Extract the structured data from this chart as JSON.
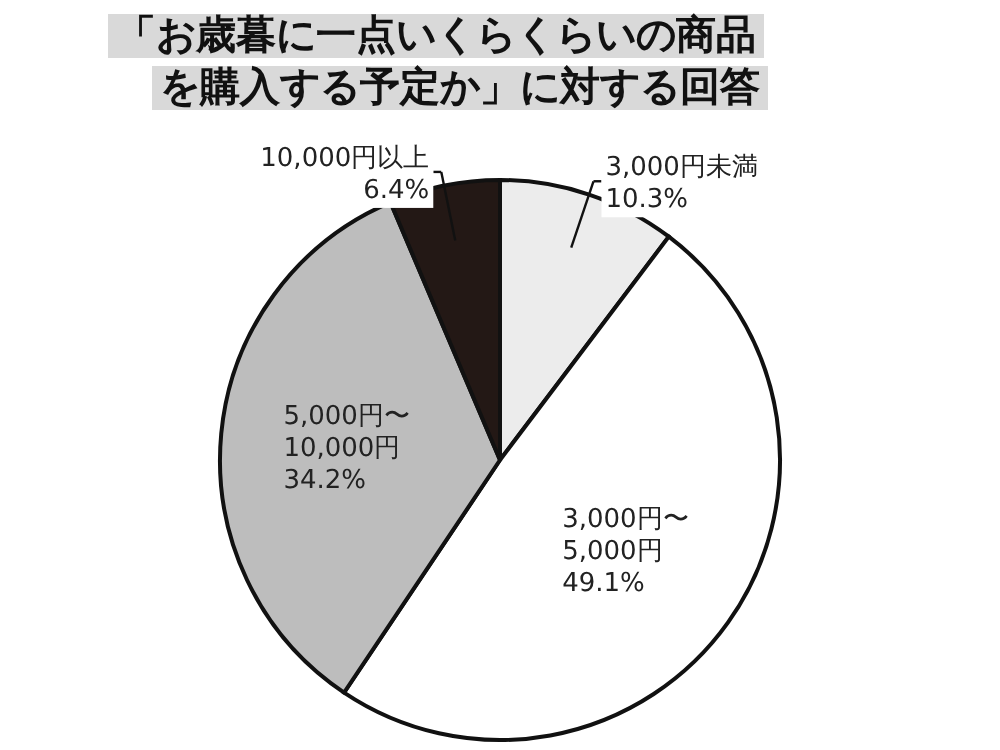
{
  "chart_data": {
    "type": "pie",
    "title": "「お歳暮に一点いくらくらいの商品を購入する予定か」に対する回答",
    "categories": [
      "3,000円未満",
      "3,000円〜\n5,000円",
      "5,000円〜\n10,000円",
      "10,000円以上"
    ],
    "values": [
      10.3,
      49.1,
      34.2,
      6.4
    ],
    "value_labels": [
      "10.3%",
      "49.1%",
      "34.2%",
      "6.4%"
    ],
    "colors": [
      "#ececec",
      "#ffffff",
      "#bdbdbd",
      "#231815"
    ]
  }
}
